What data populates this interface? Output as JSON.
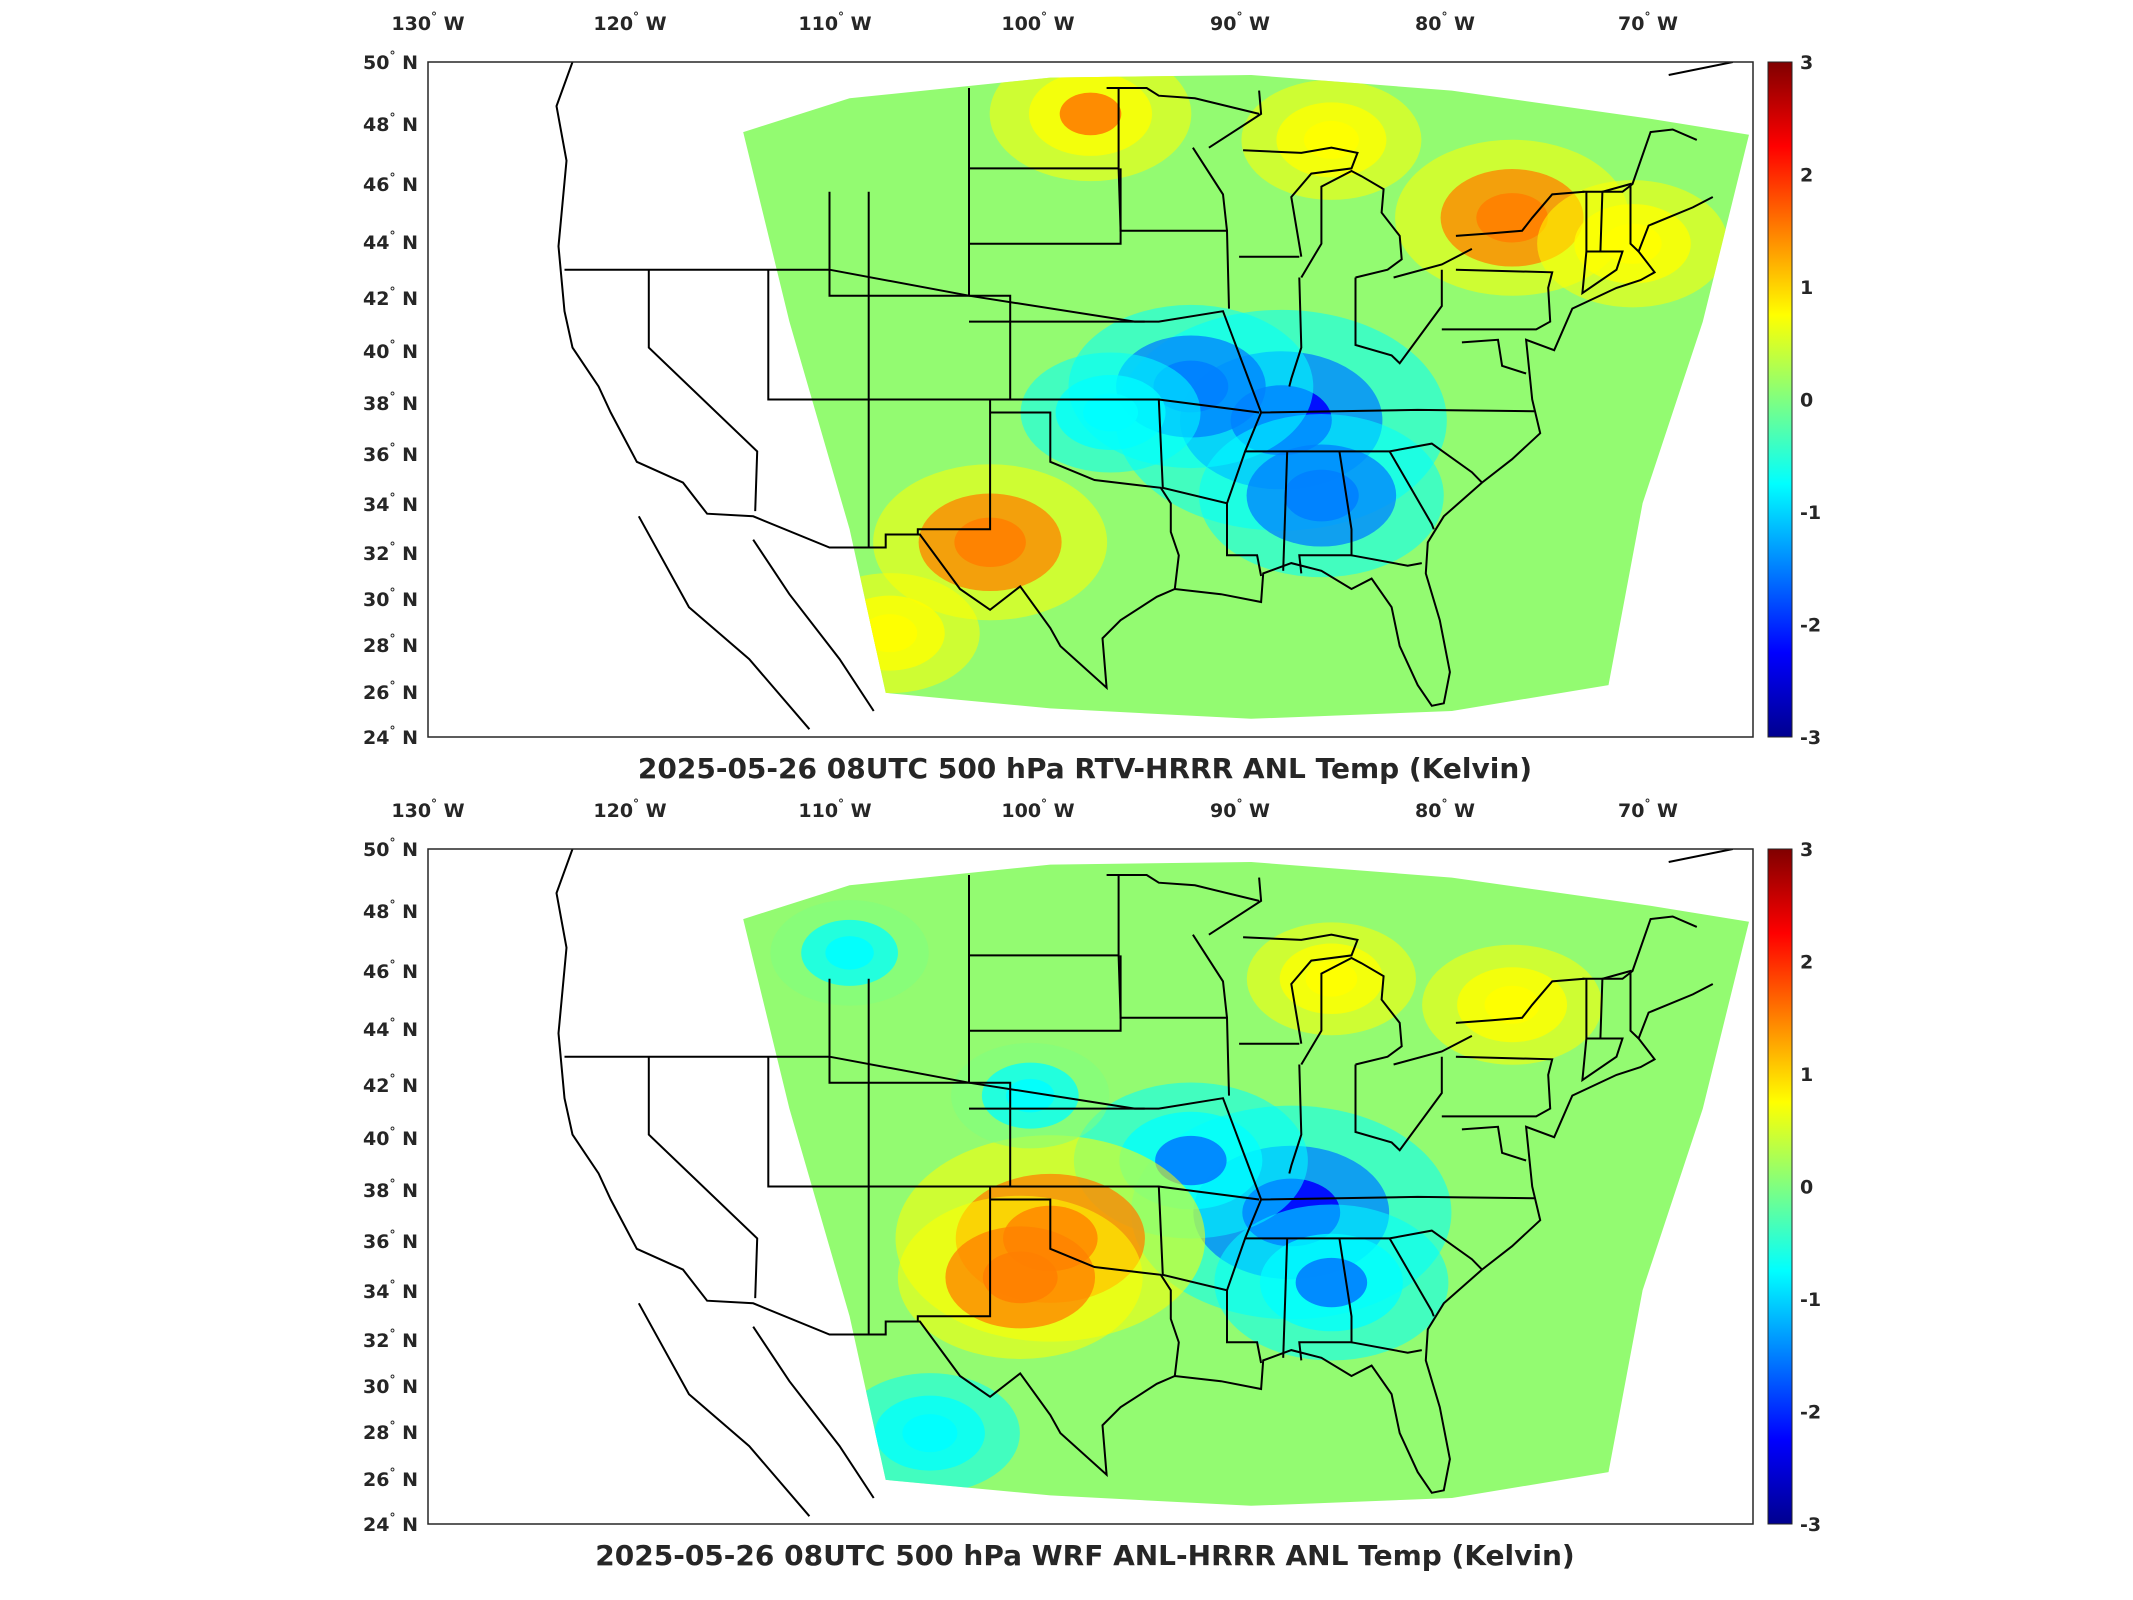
{
  "colormap": {
    "name": "jet",
    "stops": [
      "#00008f",
      "#0000ff",
      "#0080ff",
      "#00ffff",
      "#80ff80",
      "#ffff00",
      "#ff8000",
      "#ff0000",
      "#800000"
    ],
    "missing_color": "#ffffff"
  },
  "border_color": "#000000",
  "lon_labels": [
    "130",
    "120",
    "110",
    "100",
    "90",
    "80",
    "70"
  ],
  "lon_hemi": "W",
  "lat_labels": [
    "50",
    "48",
    "46",
    "44",
    "42",
    "40",
    "38",
    "36",
    "34",
    "32",
    "30",
    "28",
    "26",
    "24"
  ],
  "lat_hemi": "N",
  "colorbar": {
    "ticks": [
      "3",
      "2",
      "1",
      "0",
      "-1",
      "-2",
      "-3"
    ],
    "range": [
      -3,
      3
    ]
  },
  "panels": [
    {
      "title": "2025-05-26 08UTC 500 hPa RTV-HRRR ANL Temp (Kelvin)",
      "anomaly_centers": [
        {
          "lon": -88.5,
          "lat": 36.2,
          "value": -2.4
        },
        {
          "lon": -93.0,
          "lat": 37.5,
          "value": -1.6
        },
        {
          "lon": -86.5,
          "lat": 33.3,
          "value": -1.6
        },
        {
          "lon": -97.0,
          "lat": 36.5,
          "value": -1.0
        },
        {
          "lon": -77.0,
          "lat": 44.0,
          "value": 1.5
        },
        {
          "lon": -71.0,
          "lat": 43.0,
          "value": 1.1
        },
        {
          "lon": -98.0,
          "lat": 48.0,
          "value": 1.2
        },
        {
          "lon": -103.0,
          "lat": 31.5,
          "value": 1.5
        },
        {
          "lon": -108.0,
          "lat": 28.0,
          "value": 1.0
        },
        {
          "lon": -86.0,
          "lat": 47.0,
          "value": 1.0
        }
      ]
    },
    {
      "title": "2025-05-26 08UTC 500 hPa WRF ANL-HRRR ANL Temp (Kelvin)",
      "anomaly_centers": [
        {
          "lon": -88.0,
          "lat": 36.0,
          "value": -2.3
        },
        {
          "lon": -93.0,
          "lat": 38.0,
          "value": -1.5
        },
        {
          "lon": -86.0,
          "lat": 33.3,
          "value": -1.5
        },
        {
          "lon": -100.0,
          "lat": 35.0,
          "value": 2.2
        },
        {
          "lon": -101.5,
          "lat": 33.5,
          "value": 1.6
        },
        {
          "lon": -77.0,
          "lat": 44.0,
          "value": 1.0
        },
        {
          "lon": -86.0,
          "lat": 45.0,
          "value": 0.9
        },
        {
          "lon": -110.0,
          "lat": 46.0,
          "value": -0.8
        },
        {
          "lon": -106.0,
          "lat": 27.5,
          "value": -1.0
        },
        {
          "lon": -101.0,
          "lat": 40.5,
          "value": -0.8
        }
      ]
    }
  ]
}
